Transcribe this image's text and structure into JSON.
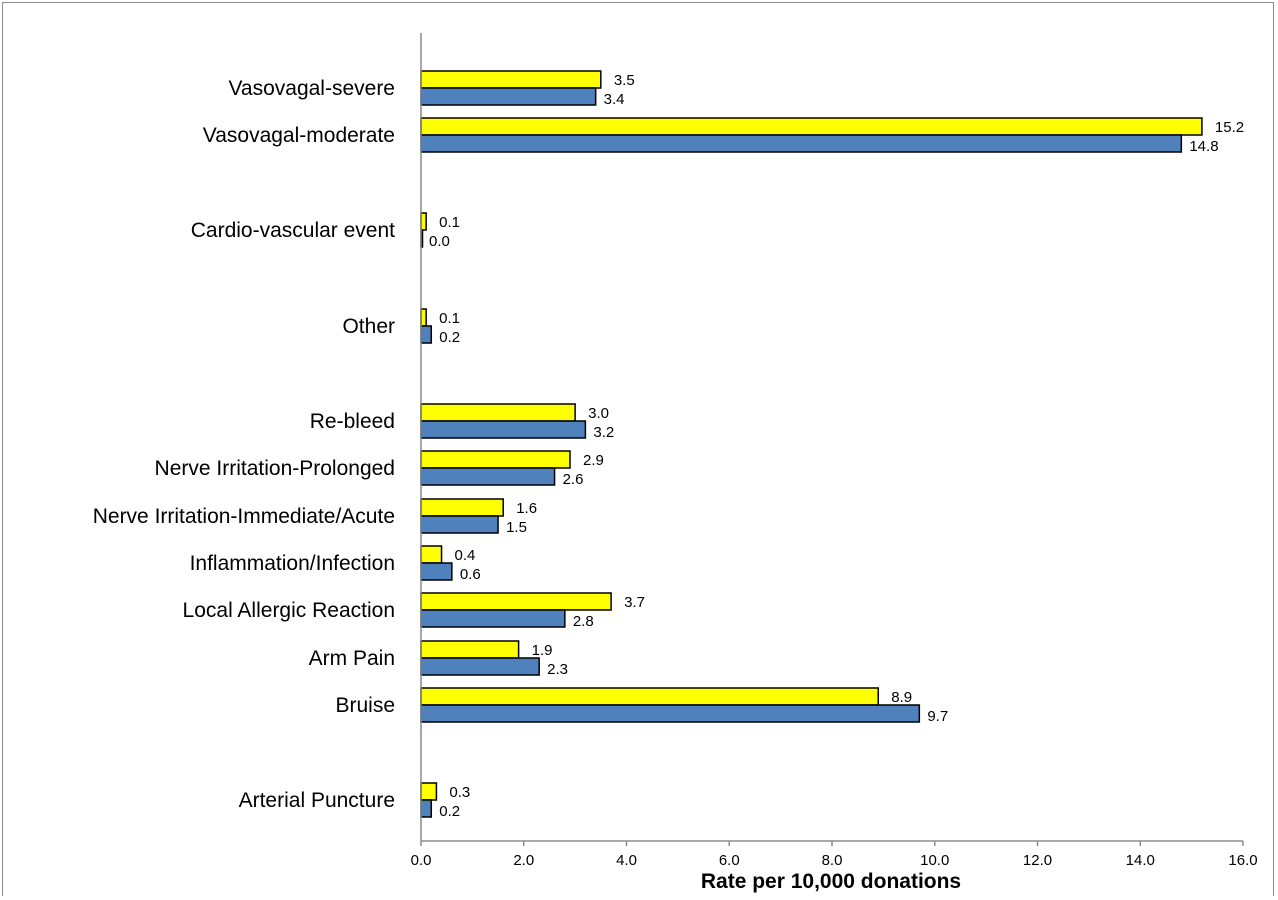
{
  "chart_data": {
    "type": "bar",
    "orientation": "horizontal",
    "title": "",
    "xlabel": "Rate per 10,000 donations",
    "ylabel": "",
    "xlim": [
      0,
      16
    ],
    "x_ticks": [
      "0.0",
      "2.0",
      "4.0",
      "6.0",
      "8.0",
      "10.0",
      "12.0",
      "14.0",
      "16.0"
    ],
    "grid": false,
    "legend": "none",
    "categories": [
      "Vasovagal-severe",
      "Vasovagal-moderate",
      "Cardio-vascular event",
      "Other",
      "Re-bleed",
      "Nerve Irritation-Prolonged",
      "Nerve Irritation-Immediate/Acute",
      "Inflammation/Infection",
      "Local Allergic Reaction",
      "Arm Pain",
      "Bruise",
      "Arterial Puncture"
    ],
    "series": [
      {
        "color": "#ffff00",
        "values": [
          3.5,
          15.2,
          0.1,
          0.1,
          3.0,
          2.9,
          1.6,
          0.4,
          3.7,
          1.9,
          8.9,
          0.3
        ],
        "labels": [
          "3.5",
          "15.2",
          "0.1",
          "0.1",
          "3.0",
          "2.9",
          "1.6",
          "0.4",
          "3.7",
          "1.9",
          "8.9",
          "0.3"
        ]
      },
      {
        "color": "#4f81bd",
        "values": [
          3.4,
          14.8,
          0.0,
          0.2,
          3.2,
          2.6,
          1.5,
          0.6,
          2.8,
          2.3,
          9.7,
          0.2
        ],
        "labels": [
          "3.4",
          "14.8",
          "0.0",
          "0.2",
          "3.2",
          "2.6",
          "1.5",
          "0.6",
          "2.8",
          "2.3",
          "9.7",
          "0.2"
        ]
      }
    ]
  }
}
